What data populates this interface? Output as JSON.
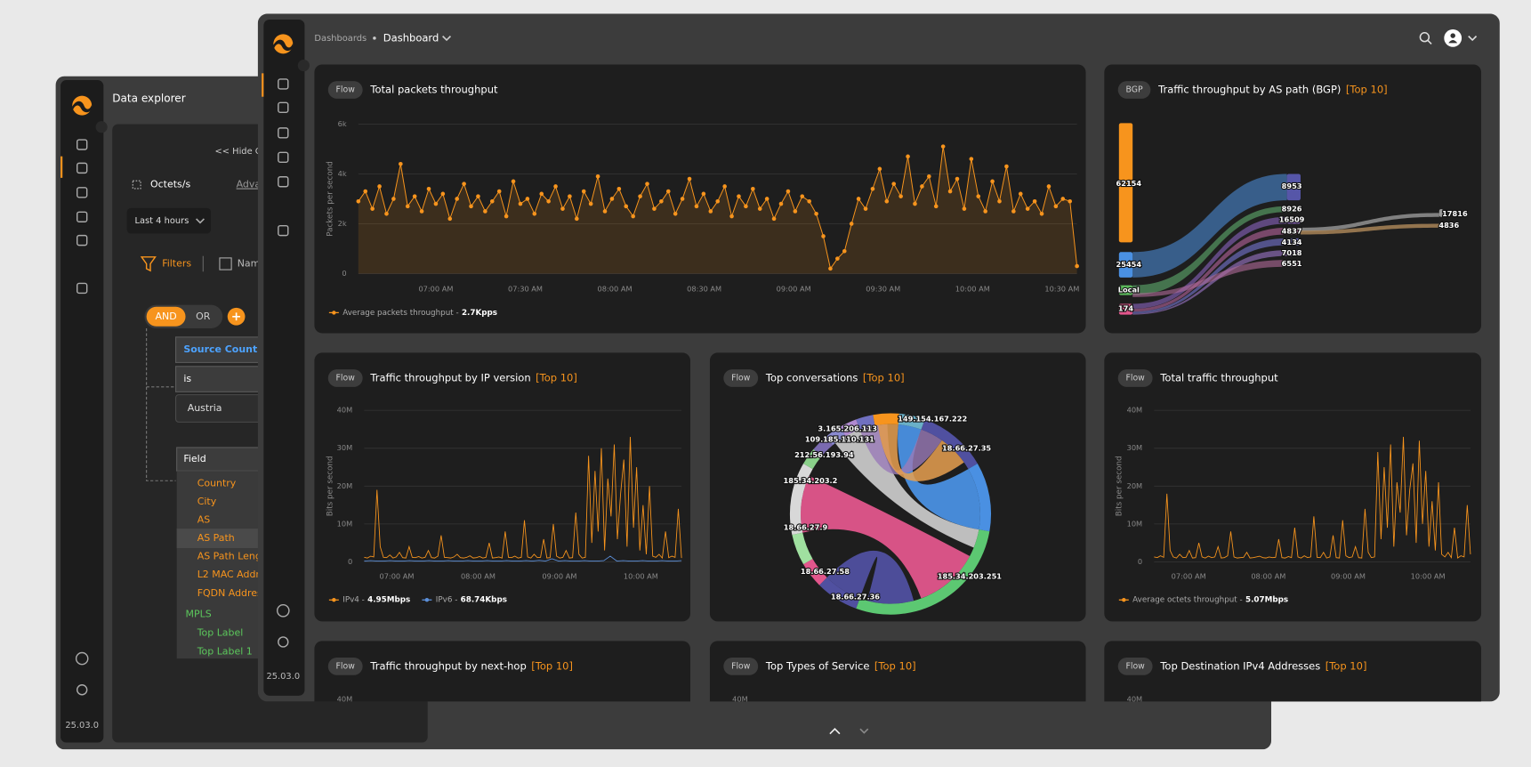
{
  "background_window": {
    "title": "Data explorer",
    "hide_toggle": "<< Hide Q",
    "metric": "Octets/s",
    "advanced": "Adva",
    "time_range": "Last 4 hours",
    "filters_tab": "Filters",
    "names_tab": "Nam",
    "operators": [
      "AND",
      "OR"
    ],
    "filter": {
      "field": "Source Count",
      "operator": "is",
      "value": "Austria"
    },
    "field_select": "Field",
    "field_options": [
      "Country",
      "City",
      "AS",
      "AS Path",
      "AS Path Leng",
      "L2 MAC Addr",
      "FQDN Addres"
    ],
    "mpls_group": {
      "name": "MPLS",
      "options": [
        "Top Label",
        "Top Label 1"
      ]
    },
    "version": "25.03.0"
  },
  "dashboard": {
    "breadcrumb": [
      "Dashboards",
      "Dashboard"
    ],
    "version": "25.03.0",
    "panels": [
      {
        "tag": "Flow",
        "title": "Total packets throughput",
        "chart": {
          "type": "line",
          "y_label": "Packets per second",
          "ylim": [
            0,
            6000
          ],
          "yticks": [
            0,
            {
              "value": 2000,
              "label": "2k"
            },
            {
              "value": 4000,
              "label": "4k"
            },
            {
              "value": 6000,
              "label": "6k"
            }
          ],
          "xlim": [
            "06:34",
            "10:35"
          ],
          "xticks": [
            {
              "value": "07:00",
              "label": "07:00 AM"
            },
            {
              "value": "07:30",
              "label": "07:30 AM"
            },
            {
              "value": "08:00",
              "label": "08:00 AM"
            },
            {
              "value": "08:30",
              "label": "08:30 AM"
            },
            {
              "value": "09:00",
              "label": "09:00 AM"
            },
            {
              "value": "09:30",
              "label": "09:30 AM"
            },
            {
              "value": "10:00",
              "label": "10:00 AM"
            },
            {
              "value": "10:30",
              "label": "10:30 AM"
            }
          ],
          "grid": true,
          "area": true,
          "markers": true,
          "series": [
            {
              "name": "Average packets throughput -",
              "summary": "2.7Kpps",
              "color": "#f7941d",
              "values": [
                2900,
                3300,
                2600,
                3500,
                2400,
                3000,
                4400,
                2700,
                3100,
                2500,
                3400,
                2800,
                3200,
                2200,
                3000,
                3600,
                2700,
                3100,
                2500,
                2900,
                3300,
                2300,
                3700,
                2800,
                3000,
                2400,
                3200,
                2900,
                3500,
                2600,
                3100,
                2200,
                3300,
                2800,
                3900,
                2500,
                3000,
                3400,
                2700,
                2300,
                3100,
                3600,
                2600,
                2900,
                3300,
                2400,
                3000,
                3800,
                2700,
                3200,
                2500,
                2900,
                3500,
                2300,
                3100,
                2700,
                3400,
                2600,
                3000,
                2200,
                2800,
                3300,
                2500,
                3100,
                2900,
                2400,
                1500,
                200,
                600,
                900,
                2000,
                3000,
                2600,
                3400,
                4200,
                2900,
                3600,
                3100,
                4700,
                2800,
                3500,
                3900,
                2700,
                5100,
                3300,
                3800,
                2600,
                4600,
                3100,
                2500,
                3700,
                2900,
                4300,
                2500,
                3200,
                2600,
                2900,
                2400,
                3500,
                2700,
                3000,
                2900,
                300
              ]
            }
          ]
        }
      },
      {
        "tag": "BGP",
        "title": "Traffic throughput by AS path (BGP)",
        "badge": "[Top 10]",
        "chart": {
          "type": "sankey",
          "nodes": [
            {
              "label": "62154",
              "color": "#f7941d"
            },
            {
              "label": "25454",
              "color": "#4a90e2"
            },
            {
              "label": "Local",
              "color": "#5cb85c"
            },
            {
              "label": "174",
              "color": "#e2568c"
            },
            {
              "label": "8953",
              "color": "#5656a8"
            },
            {
              "label": "8926",
              "color": "#5a9e6a"
            },
            {
              "label": "16509",
              "color": "#7a5aa8"
            },
            {
              "label": "4837",
              "color": "#a05a8a"
            },
            {
              "label": "4134",
              "color": "#6a6ab8"
            },
            {
              "label": "7018",
              "color": "#8a6ab0"
            },
            {
              "label": "6551",
              "color": "#b06a9a"
            },
            {
              "label": "17816",
              "color": "#999999"
            },
            {
              "label": "4836",
              "color": "#b08a5a"
            }
          ]
        }
      },
      {
        "tag": "Flow",
        "title": "Traffic throughput by IP version",
        "badge": "[Top 10]",
        "chart": {
          "type": "line",
          "y_label": "Bits per second",
          "ylim": [
            0,
            40
          ],
          "yticks": [
            0,
            {
              "value": 10,
              "label": "10M"
            },
            {
              "value": 20,
              "label": "20M"
            },
            {
              "value": 30,
              "label": "30M"
            },
            {
              "value": 40,
              "label": "40M"
            }
          ],
          "xlim": [
            "06:36",
            "10:30"
          ],
          "xticks": [
            {
              "value": "07:00",
              "label": "07:00 AM"
            },
            {
              "value": "08:00",
              "label": "08:00 AM"
            },
            {
              "value": "09:00",
              "label": "09:00 AM"
            },
            {
              "value": "10:00",
              "label": "10:00 AM"
            }
          ],
          "grid": true,
          "area": false,
          "markers": false,
          "series": [
            {
              "name": "IPv4 -",
              "summary": "4.95Mbps",
              "color": "#f7941d",
              "values": [
                1.2,
                1.0,
                1.5,
                1.3,
                19,
                4,
                1.2,
                1.1,
                1.8,
                1.0,
                1.3,
                2.5,
                1.1,
                1.0,
                4,
                1.2,
                1.1,
                1.4,
                1.0,
                1.2,
                3,
                1.1,
                1.0,
                1.5,
                7,
                1.2,
                1.1,
                1.0,
                1.3,
                2,
                1.1,
                1.0,
                1.2,
                1.6,
                1.0,
                1.1,
                1.4,
                1.0,
                1.2,
                5,
                1.0,
                1.1,
                1.3,
                1.0,
                8,
                1.2,
                1.1,
                1.5,
                1.0,
                1.2,
                11,
                1.3,
                1.0,
                2,
                1.1,
                1.2,
                6,
                1.0,
                1.1,
                10,
                1.5,
                1.0,
                1.2,
                3,
                1.0,
                1.1,
                13,
                2,
                1.0,
                1.2,
                28,
                5,
                24,
                8,
                30,
                3,
                22,
                12,
                31,
                6,
                18,
                27,
                4,
                33,
                9,
                25,
                3,
                15,
                2,
                20,
                1.5,
                1.2,
                2,
                1.0,
                8,
                1.1,
                1.5,
                1.2,
                14,
                1.0
              ]
            },
            {
              "name": "IPv6 -",
              "summary": "68.74Kbps",
              "color": "#5b8fd9",
              "values": [
                0.2,
                0.3,
                0.2,
                0.2,
                0.3,
                0.2,
                0.2,
                0.3,
                0.2,
                0.2,
                0.3,
                0.2,
                0.2,
                0.3,
                0.2,
                0.2,
                0.3,
                0.2,
                0.2,
                0.3,
                0.2,
                0.2,
                0.3,
                0.2,
                0.2,
                0.3,
                0.2,
                0.4,
                0.2,
                0.8,
                0.2,
                0.3,
                0.2,
                0.2,
                0.3,
                0.2,
                0.2,
                0.3,
                1.5,
                0.2,
                0.3,
                0.2,
                0.2,
                0.3,
                0.2,
                0.2,
                0.3,
                0.2,
                0.2,
                0.3
              ]
            }
          ]
        }
      },
      {
        "tag": "Flow",
        "title": "Top conversations",
        "badge": "[Top 10]",
        "chart": {
          "type": "chord",
          "labels": [
            "149.154.167.222",
            "3.165.206.113",
            "109.185.110.131",
            "212.56.193.94",
            "185.34.203.2",
            "18.66.27.9",
            "18.66.27.58",
            "18.66.27.36",
            "185.34.203.251",
            "18.66.27.35"
          ]
        }
      },
      {
        "tag": "Flow",
        "title": "Total traffic throughput",
        "chart": {
          "type": "line",
          "y_label": "Bits per second",
          "ylim": [
            0,
            40
          ],
          "yticks": [
            0,
            {
              "value": 10,
              "label": "10M"
            },
            {
              "value": 20,
              "label": "20M"
            },
            {
              "value": 30,
              "label": "30M"
            },
            {
              "value": 40,
              "label": "40M"
            }
          ],
          "xlim": [
            "06:34",
            "10:32"
          ],
          "xticks": [
            {
              "value": "07:00",
              "label": "07:00 AM"
            },
            {
              "value": "08:00",
              "label": "08:00 AM"
            },
            {
              "value": "09:00",
              "label": "09:00 AM"
            },
            {
              "value": "10:00",
              "label": "10:00 AM"
            }
          ],
          "grid": true,
          "area": false,
          "markers": false,
          "series": [
            {
              "name": "Average octets throughput -",
              "summary": "5.07Mbps",
              "color": "#f7941d",
              "values": [
                1.3,
                1.1,
                1.6,
                1.2,
                18,
                3,
                1.3,
                1.0,
                2,
                1.1,
                1.2,
                3,
                1.0,
                1.1,
                5,
                1.3,
                1.0,
                1.5,
                1.1,
                1.3,
                4,
                1.0,
                1.1,
                1.6,
                8,
                1.3,
                1.0,
                1.1,
                1.2,
                2.5,
                1.0,
                1.1,
                1.3,
                1.5,
                1.1,
                1.0,
                1.3,
                1.1,
                1.2,
                6,
                1.1,
                1.0,
                1.4,
                1.1,
                9,
                1.3,
                1.0,
                1.6,
                1.1,
                1.3,
                12,
                1.2,
                1.1,
                2.5,
                1.0,
                1.3,
                7,
                1.1,
                1.0,
                11,
                1.6,
                1.1,
                1.3,
                4,
                1.1,
                1.0,
                14,
                2.5,
                1.1,
                1.3,
                29,
                6,
                25,
                9,
                31,
                4,
                21,
                13,
                33,
                7,
                19,
                26,
                5,
                32,
                10,
                24,
                4,
                16,
                3,
                21,
                2,
                1.3,
                2.5,
                1.1,
                9,
                1.0,
                1.6,
                1.3,
                15,
                2
              ]
            }
          ]
        }
      },
      {
        "tag": "Flow",
        "title": "Traffic throughput by next-hop",
        "badge": "[Top 10]",
        "chart": {
          "type": "line",
          "ylim": [
            0,
            40
          ],
          "yticks": [
            {
              "value": 40,
              "label": "40M"
            }
          ],
          "grid": false
        }
      },
      {
        "tag": "Flow",
        "title": "Top Types of Service",
        "badge": "[Top 10]",
        "chart": {
          "type": "line",
          "ylim": [
            0,
            40
          ],
          "yticks": [
            {
              "value": 40,
              "label": "40M"
            }
          ],
          "grid": false
        }
      },
      {
        "tag": "Flow",
        "title": "Top Destination IPv4 Addresses",
        "badge": "[Top 10]",
        "chart": {
          "type": "line",
          "ylim": [
            0,
            40
          ],
          "yticks": [
            {
              "value": 40,
              "label": "40M"
            }
          ],
          "grid": false
        }
      }
    ]
  }
}
